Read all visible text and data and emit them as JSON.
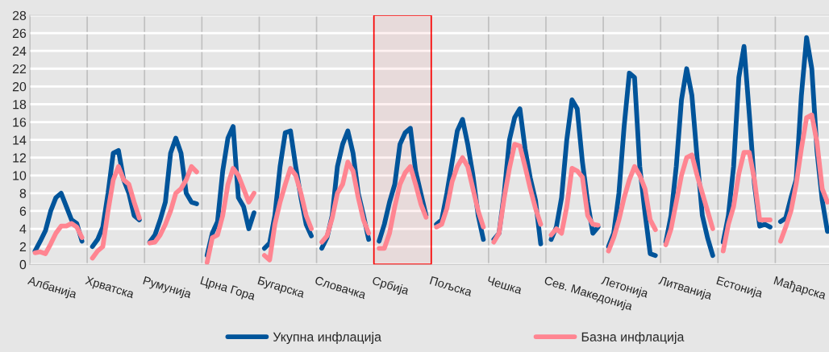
{
  "chart_data": {
    "type": "line",
    "categories": [
      "Албанија",
      null,
      null,
      null,
      null,
      null,
      null,
      null,
      null,
      null,
      null,
      "Хрватска",
      null,
      null,
      null,
      null,
      null,
      null,
      null,
      null,
      null,
      null,
      "Румунија",
      null,
      null,
      null,
      null,
      null,
      null,
      null,
      null,
      null,
      null,
      "Црна Гора",
      null,
      null,
      null,
      null,
      null,
      null,
      null,
      null,
      null,
      null,
      "Бугарска",
      null,
      null,
      null,
      null,
      null,
      null,
      null,
      null,
      null,
      null,
      "Словачка",
      null,
      null,
      null,
      null,
      null,
      null,
      null,
      null,
      null,
      null,
      "Србија",
      null,
      null,
      null,
      null,
      null,
      null,
      null,
      null,
      null,
      null,
      "Пољска",
      null,
      null,
      null,
      null,
      null,
      null,
      null,
      null,
      null,
      null,
      "Чешка",
      null,
      null,
      null,
      null,
      null,
      null,
      null,
      null,
      null,
      null,
      "Сев. Македонија",
      null,
      null,
      null,
      null,
      null,
      null,
      null,
      null,
      null,
      null,
      "Летонија",
      null,
      null,
      null,
      null,
      null,
      null,
      null,
      null,
      null,
      null,
      "Литванија",
      null,
      null,
      null,
      null,
      null,
      null,
      null,
      null,
      null,
      null,
      "Естонија",
      null,
      null,
      null,
      null,
      null,
      null,
      null,
      null,
      null,
      null,
      "Мађарска",
      null,
      null,
      null,
      null,
      null,
      null,
      null,
      null,
      null,
      null
    ],
    "series": [
      {
        "name": "Укупна инфлација",
        "color": "#00549a",
        "values": [
          null,
          1.5,
          2.6,
          3.8,
          6.0,
          7.5,
          8.0,
          6.5,
          5.0,
          4.6,
          2.6,
          null,
          2.0,
          2.8,
          4.2,
          8.0,
          12.5,
          12.8,
          9.5,
          8.0,
          5.5,
          5.0,
          null,
          2.5,
          3.3,
          5.0,
          7.0,
          12.5,
          14.2,
          12.5,
          8.0,
          7.0,
          6.8,
          null,
          1.0,
          3.5,
          4.8,
          10.5,
          14.2,
          15.5,
          7.5,
          6.5,
          4.0,
          5.8,
          null,
          1.8,
          2.4,
          5.5,
          11.0,
          14.8,
          15.0,
          11.0,
          7.5,
          4.5,
          3.2,
          null,
          1.8,
          3.0,
          5.5,
          11.0,
          13.5,
          15.0,
          12.5,
          8.0,
          5.5,
          2.8,
          null,
          2.6,
          4.5,
          7.0,
          9.0,
          13.5,
          14.8,
          15.3,
          10.5,
          8.0,
          5.5,
          null,
          4.5,
          5.0,
          8.0,
          11.5,
          15.0,
          16.3,
          13.5,
          10.0,
          5.5,
          2.8,
          null,
          2.8,
          3.5,
          8.0,
          14.0,
          16.5,
          17.5,
          13.0,
          9.7,
          7.2,
          2.3,
          null,
          2.8,
          4.2,
          7.5,
          14.0,
          18.5,
          17.5,
          11.5,
          7.0,
          3.5,
          4.2,
          null,
          2.0,
          3.5,
          8.0,
          15.5,
          21.5,
          21.0,
          11.0,
          5.8,
          1.2,
          1.0,
          null,
          2.5,
          5.5,
          11.0,
          18.5,
          22.0,
          19.0,
          12.0,
          5.5,
          3.0,
          1.0,
          null,
          2.5,
          5.5,
          11.0,
          21.0,
          24.5,
          17.0,
          9.0,
          4.3,
          4.5,
          4.2,
          null,
          4.8,
          5.2,
          7.5,
          9.5,
          19.0,
          25.5,
          22.0,
          12.7,
          7.2,
          3.7
        ]
      },
      {
        "name": "Базна инфлација",
        "color": "#ff8591",
        "values": [
          null,
          1.3,
          1.4,
          1.2,
          2.3,
          3.5,
          4.3,
          4.3,
          4.6,
          4.2,
          3.0,
          null,
          0.7,
          1.5,
          2.0,
          6.0,
          9.5,
          11.0,
          9.5,
          9.0,
          7.0,
          5.2,
          null,
          2.4,
          2.5,
          3.3,
          4.5,
          6.0,
          8.0,
          8.5,
          9.5,
          11.0,
          10.4,
          null,
          0.2,
          3.0,
          3.3,
          5.5,
          9.0,
          10.8,
          10.0,
          8.5,
          7.0,
          8.0,
          null,
          1.0,
          0.5,
          4.5,
          7.0,
          9.0,
          10.8,
          10.0,
          8.0,
          5.5,
          4.0,
          null,
          2.5,
          3.2,
          5.2,
          8.0,
          9.0,
          11.5,
          10.5,
          7.5,
          5.0,
          3.5,
          null,
          1.8,
          1.8,
          3.5,
          6.5,
          9.0,
          10.3,
          11.0,
          9.0,
          6.8,
          5.3,
          null,
          4.2,
          4.5,
          6.3,
          9.3,
          11.0,
          12.0,
          11.0,
          8.5,
          6.0,
          4.2,
          null,
          2.5,
          3.5,
          7.5,
          10.8,
          13.5,
          13.3,
          11.0,
          8.5,
          6.3,
          4.5,
          null,
          3.3,
          4.0,
          3.5,
          6.5,
          10.8,
          10.5,
          9.8,
          5.5,
          4.5,
          4.4,
          null,
          1.5,
          3.0,
          5.0,
          7.5,
          9.5,
          11.0,
          10.0,
          8.5,
          5.0,
          3.9,
          null,
          2.2,
          4.0,
          7.0,
          10.0,
          12.0,
          12.3,
          10.0,
          8.0,
          6.0,
          4.0,
          null,
          1.5,
          4.5,
          6.5,
          10.2,
          12.6,
          12.6,
          9.5,
          5.0,
          5.0,
          5.0,
          null,
          2.6,
          4.2,
          6.0,
          9.0,
          13.0,
          16.5,
          16.8,
          13.7,
          8.5,
          7.0
        ]
      }
    ],
    "ylim": [
      0,
      28
    ],
    "yticks": [
      0,
      2,
      4,
      6,
      8,
      10,
      12,
      14,
      16,
      18,
      20,
      22,
      24,
      26,
      28
    ],
    "bands": [
      {
        "axis": "x",
        "from": "Србија",
        "to": "Пољска",
        "color": "#ff0000"
      }
    ],
    "grid": true,
    "legend": "bottom",
    "marker": "none",
    "line_style": "solid"
  }
}
